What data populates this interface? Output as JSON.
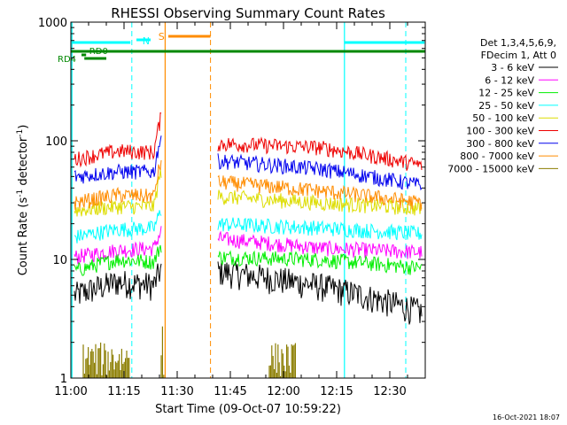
{
  "chart_data": {
    "type": "line",
    "title": "RHESSI Observing Summary Count Rates",
    "xlabel": "Start Time (09-Oct-07 10:59:22)",
    "ylabel_main": "Count Rate (s",
    "ylabel_sup1": "-1",
    "ylabel_mid": " detector",
    "ylabel_sup2": "-1",
    "ylabel_end": ")",
    "yscale": "log",
    "ylim": [
      1,
      1000
    ],
    "xlim_minutes": [
      0,
      100
    ],
    "x_ticks": [
      {
        "m": 0,
        "label": "11:00"
      },
      {
        "m": 15,
        "label": "11:15"
      },
      {
        "m": 30,
        "label": "11:30"
      },
      {
        "m": 45,
        "label": "11:45"
      },
      {
        "m": 60,
        "label": "12:00"
      },
      {
        "m": 75,
        "label": "12:15"
      },
      {
        "m": 90,
        "label": "12:30"
      }
    ],
    "y_ticks": [
      {
        "v": 1,
        "label": "1"
      },
      {
        "v": 10,
        "label": "10"
      },
      {
        "v": 100,
        "label": "100"
      },
      {
        "v": 1000,
        "label": "1000"
      }
    ],
    "legend_header": [
      "Det 1,3,4,5,6,9,",
      "FDecim 1, Att 0"
    ],
    "series": [
      {
        "name": "3 - 6 keV",
        "color": "#000000"
      },
      {
        "name": "6 - 12 keV",
        "color": "#ff00ff"
      },
      {
        "name": "12 - 25 keV",
        "color": "#00ee00"
      },
      {
        "name": "25 - 50 keV",
        "color": "#00ffff"
      },
      {
        "name": "50 - 100 keV",
        "color": "#dddd00"
      },
      {
        "name": "100 - 300 keV",
        "color": "#ee0000"
      },
      {
        "name": "300 - 800 keV",
        "color": "#0000ee"
      },
      {
        "name": "800 - 7000 keV",
        "color": "#ff8c00"
      },
      {
        "name": "7000 - 15000 keV",
        "color": "#8b7d00"
      }
    ],
    "flags": {
      "N": "N",
      "S": "S",
      "RD0": "RD0",
      "RD4": "RD4"
    },
    "footer_date": "16-Oct-2021 18:07"
  }
}
